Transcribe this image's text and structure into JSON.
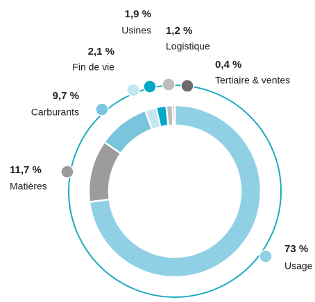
{
  "chart_data": {
    "type": "pie",
    "donut": true,
    "categories": [
      "Usage",
      "Matières",
      "Carburants",
      "Fin de vie",
      "Usines",
      "Logistique",
      "Tertiaire & ventes"
    ],
    "values": [
      73,
      11.7,
      9.7,
      2.1,
      1.9,
      1.2,
      0.4
    ],
    "value_labels": [
      "73 %",
      "11,7 %",
      "9,7 %",
      "2,1 %",
      "1,9 %",
      "1,2 %",
      "0,4 %"
    ],
    "colors": [
      "#8fd0e4",
      "#9c9c9c",
      "#7ac5dd",
      "#c4e6f1",
      "#00a9c6",
      "#bdbdbd",
      "#6b6b6b"
    ]
  }
}
